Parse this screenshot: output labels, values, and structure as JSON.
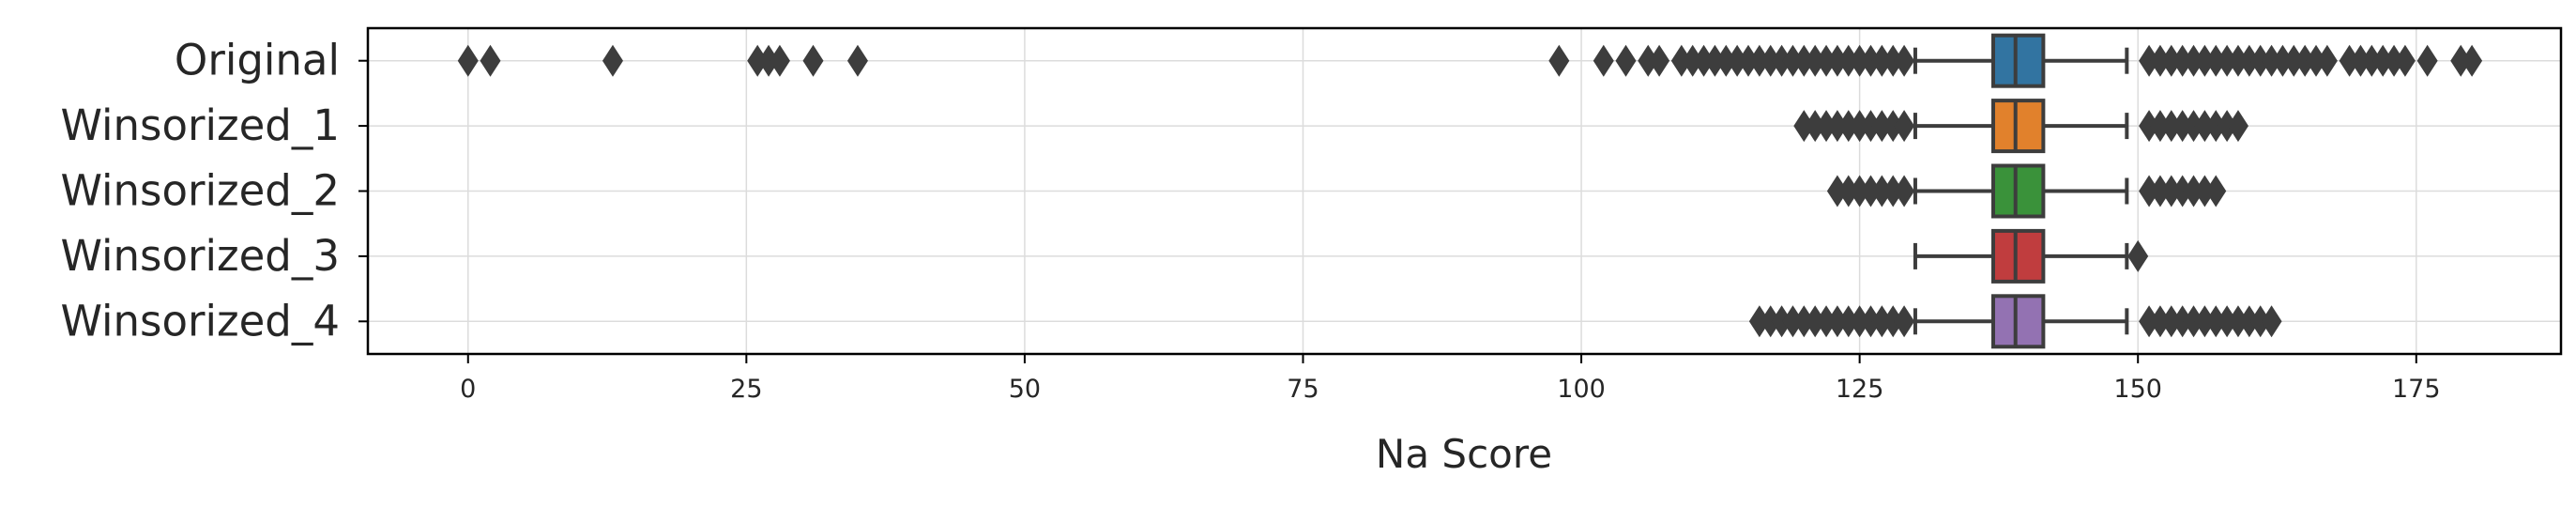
{
  "chart_data": {
    "type": "boxplot",
    "orientation": "horizontal",
    "xlabel": "Na Score",
    "xlim": [
      -9,
      188
    ],
    "xticks": [
      0,
      25,
      50,
      75,
      100,
      125,
      150,
      175
    ],
    "xtick_labels": [
      "0",
      "25",
      "50",
      "75",
      "100",
      "125",
      "150",
      "175"
    ],
    "grid": true,
    "categories": [
      "Original",
      "Winsorized_1",
      "Winsorized_2",
      "Winsorized_3",
      "Winsorized_4"
    ],
    "colors": [
      "#3274a1",
      "#e1812c",
      "#3a923a",
      "#c03d3e",
      "#9372b2"
    ],
    "outlier_color": "#3d3d3d",
    "boxes": [
      {
        "name": "Original",
        "whisker_low": 130,
        "q1": 137,
        "median": 139,
        "q3": 141.5,
        "whisker_high": 149,
        "outliers": [
          0,
          2,
          13,
          26,
          27,
          28,
          31,
          35,
          98,
          102,
          104,
          106,
          107,
          109,
          110,
          111,
          112,
          113,
          114,
          115,
          116,
          117,
          118,
          119,
          120,
          121,
          122,
          123,
          124,
          125,
          126,
          127,
          128,
          129,
          151,
          152,
          153,
          154,
          155,
          156,
          157,
          158,
          159,
          160,
          161,
          162,
          163,
          164,
          165,
          166,
          167,
          169,
          170,
          171,
          172,
          173,
          174,
          176,
          179,
          180
        ]
      },
      {
        "name": "Winsorized_1",
        "whisker_low": 130,
        "q1": 137,
        "median": 139,
        "q3": 141.5,
        "whisker_high": 149,
        "outliers": [
          120,
          121,
          122,
          123,
          124,
          125,
          126,
          127,
          128,
          129,
          151,
          152,
          153,
          154,
          155,
          156,
          157,
          158,
          159
        ]
      },
      {
        "name": "Winsorized_2",
        "whisker_low": 130,
        "q1": 137,
        "median": 139,
        "q3": 141.5,
        "whisker_high": 149,
        "outliers": [
          123,
          124,
          125,
          126,
          127,
          128,
          129,
          151,
          152,
          153,
          154,
          155,
          156,
          157
        ]
      },
      {
        "name": "Winsorized_3",
        "whisker_low": 130,
        "q1": 137,
        "median": 139,
        "q3": 141.5,
        "whisker_high": 149,
        "outliers": [
          150
        ]
      },
      {
        "name": "Winsorized_4",
        "whisker_low": 130,
        "q1": 137,
        "median": 139,
        "q3": 141.5,
        "whisker_high": 149,
        "outliers": [
          116,
          117,
          118,
          119,
          120,
          121,
          122,
          123,
          124,
          125,
          126,
          127,
          128,
          129,
          151,
          152,
          153,
          154,
          155,
          156,
          157,
          158,
          159,
          160,
          161,
          162
        ]
      }
    ]
  }
}
